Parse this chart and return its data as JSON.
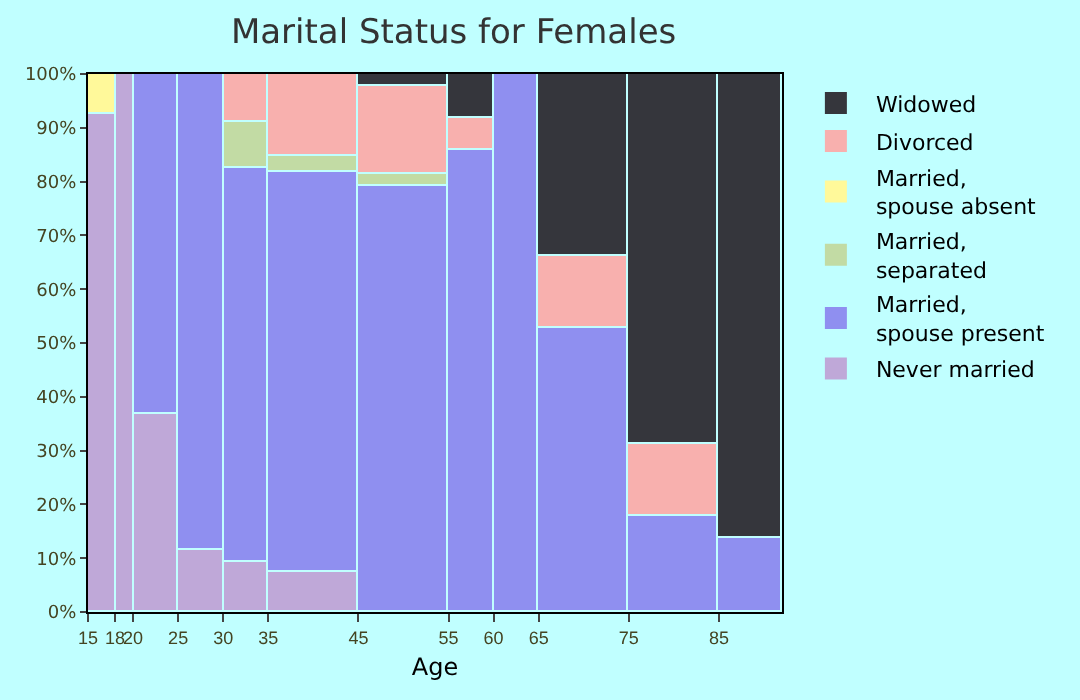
{
  "chart_data": {
    "type": "bar",
    "stacked": true,
    "title": "Marital Status for Females",
    "xlabel": "Age",
    "x": [
      16.5,
      19,
      22.5,
      27.5,
      32.5,
      40,
      50,
      57.5,
      62.5,
      70,
      80,
      88.5
    ],
    "xlim": [
      15,
      92
    ],
    "xticks": [
      15,
      18,
      20,
      25,
      30,
      35,
      45,
      55,
      60,
      65,
      75,
      85
    ],
    "ylim": [
      0,
      100
    ],
    "yticks": [
      {
        "value": 0,
        "label": "0%"
      },
      {
        "value": 10,
        "label": "10%"
      },
      {
        "value": 20,
        "label": "20%"
      },
      {
        "value": 30,
        "label": "30%"
      },
      {
        "value": 40,
        "label": "40%"
      },
      {
        "value": 50,
        "label": "50%"
      },
      {
        "value": 60,
        "label": "60%"
      },
      {
        "value": 70,
        "label": "70%"
      },
      {
        "value": 80,
        "label": "80%"
      },
      {
        "value": 90,
        "label": "90%"
      },
      {
        "value": 100,
        "label": "100%"
      }
    ],
    "legend": "right",
    "series": [
      {
        "name": "Never married",
        "color": "#bfa8d8",
        "values": [
          92.7,
          100,
          36.9,
          11.4,
          9.2,
          7.6,
          0,
          0,
          0,
          0,
          0,
          0
        ]
      },
      {
        "name": "Married, spouse present",
        "color": "#8f8ff0",
        "values": [
          0,
          0,
          63.1,
          88.6,
          73.3,
          74.2,
          79.3,
          85.8,
          100,
          52.8,
          18,
          13.9
        ]
      },
      {
        "name": "Married, separated",
        "color": "#c2dba4",
        "values": [
          0,
          0,
          0,
          0,
          8.7,
          2.8,
          2.2,
          0,
          0,
          0,
          0,
          0
        ]
      },
      {
        "name": "Married, spouse absent",
        "color": "#fff99a",
        "values": [
          7.3,
          0,
          0,
          0,
          0,
          0,
          0,
          0,
          0,
          0,
          0,
          0
        ]
      },
      {
        "name": "Divorced",
        "color": "#f8b0ae",
        "values": [
          0,
          0,
          0,
          0,
          8.8,
          15.4,
          16.4,
          5.9,
          0,
          13.2,
          13.2,
          0
        ]
      },
      {
        "name": "Widowed",
        "color": "#35363c",
        "values": [
          0,
          0,
          0,
          0,
          0,
          0,
          2.1,
          8.3,
          0,
          34,
          68.8,
          86.1
        ]
      }
    ]
  }
}
